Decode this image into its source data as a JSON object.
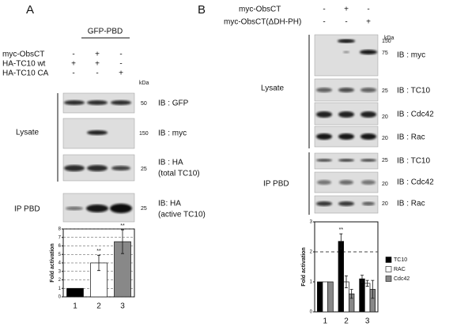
{
  "panel_a": {
    "label": "A",
    "header": "GFP-PBD",
    "conditions": [
      {
        "name": "myc-ObsCT",
        "signs": [
          "-",
          "+",
          "-"
        ]
      },
      {
        "name": "HA-TC10 wt",
        "signs": [
          "+",
          "+",
          "-"
        ]
      },
      {
        "name": "HA-TC10 CA",
        "signs": [
          "-",
          "-",
          "+"
        ]
      }
    ],
    "kda": "kDa",
    "sections": [
      "Lysate",
      "IP PBD"
    ],
    "blots": [
      {
        "marker": 50,
        "probe": "IB : GFP"
      },
      {
        "marker": 150,
        "probe": "IB : myc"
      },
      {
        "marker": 25,
        "probe": "IB : HA",
        "note": "(total TC10)"
      },
      {
        "marker": 25,
        "probe": "IB: HA",
        "note": "(active TC10)"
      }
    ]
  },
  "panel_b": {
    "label": "B",
    "conditions": [
      {
        "name": "myc-ObsCT",
        "signs": [
          "-",
          "+",
          "-"
        ]
      },
      {
        "name": "myc-ObsCT(ΔDH-PH)",
        "signs": [
          "-",
          "-",
          "+"
        ]
      }
    ],
    "kda": "kDa",
    "sections": [
      "Lysate",
      "IP PBD"
    ],
    "blots": [
      {
        "markers": [
          150,
          75
        ],
        "probe": "IB : myc"
      },
      {
        "markers": [
          25
        ],
        "probe": "IB : TC10"
      },
      {
        "markers": [
          20
        ],
        "probe": "IB : Cdc42"
      },
      {
        "markers": [
          20
        ],
        "probe": "IB : Rac"
      },
      {
        "markers": [
          25
        ],
        "probe": "IB : TC10"
      },
      {
        "markers": [
          20
        ],
        "probe": "IB : Cdc42"
      },
      {
        "markers": [
          20
        ],
        "probe": "IB : Rac"
      }
    ]
  },
  "chart_data": [
    {
      "type": "bar",
      "ylabel": "Fold activation",
      "categories": [
        "1",
        "2",
        "3"
      ],
      "values": [
        1,
        4,
        6.5
      ],
      "errors": [
        0,
        0.9,
        1.4
      ],
      "colors": [
        "#000000",
        "#ffffff",
        "#888888"
      ],
      "significance": [
        null,
        "**",
        "**"
      ],
      "ylim": [
        0,
        8
      ],
      "yticks": [
        0,
        1,
        2,
        3,
        4,
        5,
        6,
        7,
        8
      ],
      "grid": true
    },
    {
      "type": "grouped_bar",
      "ylabel": "Fold activation",
      "categories": [
        "1",
        "2",
        "3"
      ],
      "series": [
        {
          "name": "TC10",
          "color": "#000000",
          "values": [
            1,
            2.35,
            1.1
          ],
          "errors": [
            0,
            0.25,
            0.12
          ],
          "significance": [
            null,
            "**",
            null
          ]
        },
        {
          "name": "RAC",
          "color": "#ffffff",
          "values": [
            1,
            1.0,
            0.95
          ],
          "errors": [
            0,
            0.2,
            0.1
          ]
        },
        {
          "name": "Cdc42",
          "color": "#888888",
          "values": [
            1,
            0.6,
            0.75
          ],
          "errors": [
            0,
            0.15,
            0.3
          ]
        }
      ],
      "ylim": [
        0,
        3
      ],
      "yticks": [
        0,
        1,
        2,
        3
      ],
      "reference_line": 2,
      "legend": "right"
    }
  ]
}
